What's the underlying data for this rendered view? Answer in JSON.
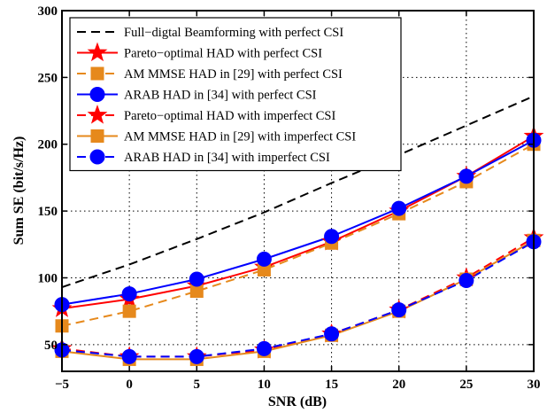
{
  "chart_data": {
    "type": "line",
    "title": "",
    "xlabel": "SNR (dB)",
    "ylabel": "Sum SE (bit/s/Hz)",
    "xlim": [
      -5,
      30
    ],
    "ylim": [
      30,
      300
    ],
    "xticks": [
      -5,
      0,
      5,
      10,
      15,
      20,
      25,
      30
    ],
    "yticks": [
      50,
      100,
      150,
      200,
      250,
      300
    ],
    "grid": true,
    "legend_position": "top-left",
    "x": [
      -5,
      0,
      5,
      10,
      15,
      20,
      25,
      30
    ],
    "series": [
      {
        "name": "Full−digtal Beamforming with perfect CSI",
        "color": "#000000",
        "dash": "dashed",
        "marker": "none",
        "values": [
          93,
          110,
          129,
          149,
          171,
          192,
          214,
          236
        ]
      },
      {
        "name": "Pareto−optimal HAD with perfect CSI",
        "color": "#ff0000",
        "dash": "solid",
        "marker": "star",
        "values": [
          77,
          84,
          94,
          108,
          127,
          150,
          176,
          206
        ]
      },
      {
        "name": "AM MMSE HAD in [29] with perfect CSI",
        "color": "#e6891c",
        "dash": "dashed",
        "marker": "square",
        "values": [
          64,
          75,
          90,
          106,
          126,
          148,
          172,
          200
        ]
      },
      {
        "name": "ARAB HAD in [34] with perfect CSI",
        "color": "#0000ff",
        "dash": "solid",
        "marker": "circle",
        "values": [
          80,
          88,
          99,
          114,
          131,
          152,
          176,
          203
        ]
      },
      {
        "name": "Pareto−optimal HAD with imperfect CSI",
        "color": "#ff0000",
        "dash": "dashed",
        "marker": "star",
        "values": [
          47,
          41,
          41,
          46,
          58,
          76,
          100,
          130
        ]
      },
      {
        "name": "AM MMSE HAD in [29] with imperfect CSI",
        "color": "#e6891c",
        "dash": "solid",
        "marker": "square",
        "values": [
          45,
          39,
          39,
          45,
          57,
          75,
          99,
          128
        ]
      },
      {
        "name": "ARAB HAD in [34] with imperfect CSI",
        "color": "#0000ff",
        "dash": "dashed",
        "marker": "circle",
        "values": [
          46,
          41,
          41,
          47,
          58,
          76,
          98,
          127
        ]
      }
    ]
  }
}
